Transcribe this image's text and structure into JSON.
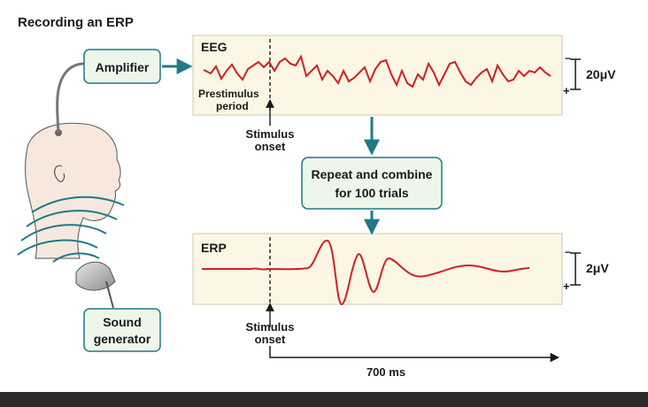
{
  "title": "Recording an ERP",
  "amplifier_label": "Amplifier",
  "sound_generator_label": [
    "Sound",
    "generator"
  ],
  "eeg": {
    "label": "EEG",
    "prestimulus_label": [
      "Prestimulus",
      "period"
    ],
    "stimulus_label": [
      "Stimulus",
      "onset"
    ],
    "scale_label": "20μV",
    "scale_minus": "−",
    "scale_plus": "+"
  },
  "repeat_box_label": [
    "Repeat and combine",
    "for 100 trials"
  ],
  "erp": {
    "label": "ERP",
    "stimulus_label": [
      "Stimulus",
      "onset"
    ],
    "scale_label": "2μV",
    "scale_minus": "−",
    "scale_plus": "+"
  },
  "time_label": "700 ms",
  "colors": {
    "panel_fill": "#fbf7e4",
    "box_fill": "#eef6ea",
    "box_stroke": "#1f7a86",
    "arrow_teal": "#1f7a86",
    "trace_red": "#d21f26",
    "waves_teal": "#1f7a86",
    "skin": "#f7e8de"
  }
}
